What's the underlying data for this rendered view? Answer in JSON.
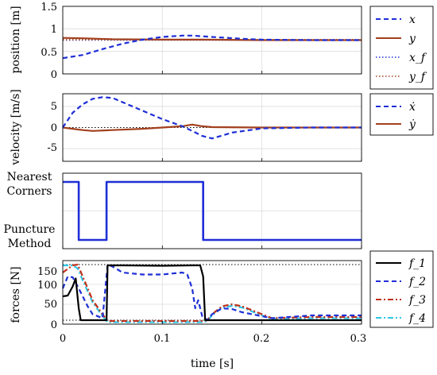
{
  "chart_data": [
    {
      "id": "position",
      "type": "line",
      "ylabel": "position [m]",
      "xlim": [
        0,
        0.3
      ],
      "ylim": [
        0,
        1.5
      ],
      "yticks": [
        "0",
        "0.5",
        "1",
        "1.5"
      ],
      "legend_placement": "outside-right",
      "series": [
        {
          "name": "x",
          "color": "#1f2fd6",
          "style": "dashed",
          "x": [
            0,
            0.02,
            0.04,
            0.06,
            0.08,
            0.1,
            0.12,
            0.13,
            0.15,
            0.18,
            0.2,
            0.25,
            0.3
          ],
          "y": [
            0.35,
            0.42,
            0.55,
            0.67,
            0.76,
            0.82,
            0.85,
            0.85,
            0.82,
            0.78,
            0.76,
            0.75,
            0.75
          ]
        },
        {
          "name": "y",
          "color": "#a2401e",
          "style": "solid",
          "x": [
            0,
            0.02,
            0.05,
            0.1,
            0.14,
            0.2,
            0.3
          ],
          "y": [
            0.8,
            0.79,
            0.77,
            0.76,
            0.76,
            0.75,
            0.75
          ]
        },
        {
          "name": "x_f",
          "color": "#1f2fd6",
          "style": "dotted",
          "x": [
            0,
            0.3
          ],
          "y": [
            0.75,
            0.75
          ]
        },
        {
          "name": "y_f",
          "color": "#a2401e",
          "style": "dotted",
          "x": [
            0,
            0.3
          ],
          "y": [
            0.76,
            0.76
          ]
        }
      ]
    },
    {
      "id": "velocity",
      "type": "line",
      "ylabel": "velocity [m/s]",
      "xlim": [
        0,
        0.3
      ],
      "ylim": [
        -8,
        8
      ],
      "yticks": [
        "-5",
        "0",
        "5"
      ],
      "legend_placement": "outside-right",
      "series": [
        {
          "name": "ẋ",
          "color": "#1f2fd6",
          "style": "dashed",
          "x": [
            0,
            0.01,
            0.02,
            0.03,
            0.04,
            0.05,
            0.06,
            0.08,
            0.1,
            0.12,
            0.13,
            0.14,
            0.15,
            0.17,
            0.2,
            0.25,
            0.3
          ],
          "y": [
            0,
            3.5,
            5.5,
            6.8,
            7.2,
            7.0,
            6.0,
            4.0,
            2.0,
            0.3,
            -0.8,
            -2.0,
            -2.6,
            -1.2,
            -0.2,
            0,
            0
          ]
        },
        {
          "name": "ẏ",
          "color": "#a2401e",
          "style": "solid",
          "x": [
            0,
            0.01,
            0.02,
            0.03,
            0.05,
            0.08,
            0.1,
            0.12,
            0.13,
            0.14,
            0.15,
            0.2,
            0.3
          ],
          "y": [
            0,
            -0.3,
            -0.6,
            -0.8,
            -0.6,
            -0.3,
            0,
            0.3,
            0.7,
            0.3,
            0.1,
            0,
            0
          ]
        }
      ]
    },
    {
      "id": "method",
      "type": "line",
      "categories": [
        "Nearest Corners",
        "Puncture Method"
      ],
      "xlim": [
        0,
        0.3
      ],
      "series": [
        {
          "name": "method",
          "color": "#1f2fd6",
          "style": "solid",
          "x": [
            0,
            0.016,
            0.016,
            0.044,
            0.044,
            0.141,
            0.141,
            0.3
          ],
          "y": [
            1,
            1,
            0,
            0,
            1,
            1,
            0,
            0
          ]
        }
      ]
    },
    {
      "id": "forces",
      "type": "line",
      "ylabel": "forces [N]",
      "xlabel": "time [s]",
      "xlim": [
        0,
        0.3
      ],
      "ylim": [
        0,
        160
      ],
      "yticks": [
        "0",
        "50",
        "100",
        "150"
      ],
      "xticks": [
        "0",
        "0.1",
        "0.2",
        "0.3"
      ],
      "xtick_values": [
        0,
        0.1,
        0.2,
        0.3
      ],
      "reference_lines": [
        150,
        10
      ],
      "legend_placement": "outside-right",
      "series": [
        {
          "name": "f_1",
          "color": "#000000",
          "style": "solid",
          "x": [
            0,
            0.005,
            0.01,
            0.013,
            0.016,
            0.018,
            0.044,
            0.045,
            0.06,
            0.1,
            0.13,
            0.138,
            0.141,
            0.143,
            0.3
          ],
          "y": [
            70,
            72,
            95,
            115,
            40,
            10,
            10,
            148,
            148,
            147,
            148,
            148,
            120,
            10,
            10
          ]
        },
        {
          "name": "f_2",
          "color": "#1f2fd6",
          "style": "dashed",
          "x": [
            0,
            0.005,
            0.01,
            0.015,
            0.02,
            0.025,
            0.03,
            0.04,
            0.045,
            0.05,
            0.06,
            0.08,
            0.1,
            0.12,
            0.125,
            0.13,
            0.133,
            0.136,
            0.14,
            0.145,
            0.15,
            0.16,
            0.17,
            0.18,
            0.2,
            0.21,
            0.25,
            0.3
          ],
          "y": [
            90,
            120,
            118,
            95,
            70,
            45,
            25,
            15,
            150,
            145,
            130,
            125,
            125,
            130,
            125,
            90,
            40,
            60,
            20,
            10,
            25,
            40,
            38,
            30,
            20,
            15,
            22,
            22
          ]
        },
        {
          "name": "f_3",
          "color": "#c0301a",
          "style": "dashdot",
          "x": [
            0,
            0.01,
            0.015,
            0.02,
            0.03,
            0.04,
            0.045,
            0.06,
            0.1,
            0.14,
            0.145,
            0.15,
            0.16,
            0.17,
            0.18,
            0.2,
            0.21,
            0.25,
            0.3
          ],
          "y": [
            130,
            148,
            150,
            120,
            60,
            25,
            8,
            8,
            8,
            8,
            10,
            25,
            45,
            50,
            45,
            25,
            15,
            18,
            18
          ]
        },
        {
          "name": "f_4",
          "color": "#2fc6e6",
          "style": "dashdot",
          "x": [
            0,
            0.01,
            0.015,
            0.02,
            0.03,
            0.04,
            0.045,
            0.06,
            0.1,
            0.14,
            0.145,
            0.15,
            0.16,
            0.17,
            0.18,
            0.2,
            0.21,
            0.25,
            0.3
          ],
          "y": [
            148,
            148,
            140,
            110,
            55,
            20,
            5,
            5,
            5,
            5,
            8,
            22,
            42,
            46,
            42,
            22,
            12,
            15,
            15
          ]
        }
      ]
    }
  ],
  "shared_xlim": [
    0,
    0.3
  ]
}
